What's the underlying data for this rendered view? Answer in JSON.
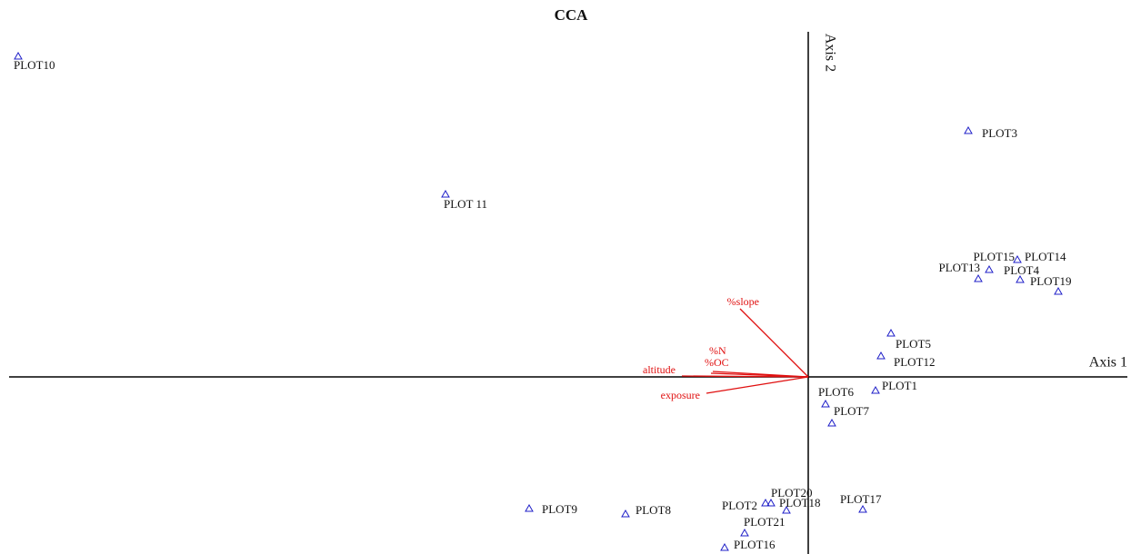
{
  "chart_data": {
    "type": "scatter",
    "title": "CCA",
    "x_label": "Axis 1",
    "y_label": "Axis 2",
    "xlim": [
      -8.79,
      3.51
    ],
    "ylim": [
      -1.95,
      3.8
    ],
    "points": {
      "color": "#1f1fc8",
      "labels": [
        "PLOT10",
        "PLOT 11",
        "PLOT3",
        "PLOT15",
        "PLOT14",
        "PLOT13",
        "PLOT4",
        "PLOT19",
        "PLOT5",
        "PLOT12",
        "PLOT1",
        "PLOT6",
        "PLOT7",
        "PLOT20",
        "PLOT2",
        "PLOT18",
        "PLOT17",
        "PLOT21",
        "PLOT16",
        "PLOT9",
        "PLOT8"
      ],
      "x": [
        -8.69,
        -3.99,
        1.76,
        1.99,
        2.3,
        1.87,
        2.33,
        2.75,
        0.91,
        0.8,
        0.74,
        0.19,
        0.26,
        -0.41,
        -0.47,
        -0.24,
        0.6,
        -0.7,
        -0.92,
        -3.07,
        -2.01
      ],
      "y": [
        3.53,
        2.01,
        2.71,
        1.18,
        1.29,
        1.08,
        1.07,
        0.94,
        0.48,
        0.23,
        -0.15,
        -0.3,
        -0.51,
        -1.39,
        -1.39,
        -1.47,
        -1.46,
        -1.72,
        -1.88,
        -1.45,
        -1.51
      ]
    },
    "arrows": {
      "color": "#e01010",
      "labels": [
        "%slope",
        "%N",
        "%OC",
        "altitude",
        "exposure"
      ],
      "x": [
        -0.75,
        -1.05,
        -1.07,
        -1.39,
        -1.12
      ],
      "y": [
        0.75,
        0.06,
        0.04,
        0.01,
        -0.18
      ]
    }
  }
}
